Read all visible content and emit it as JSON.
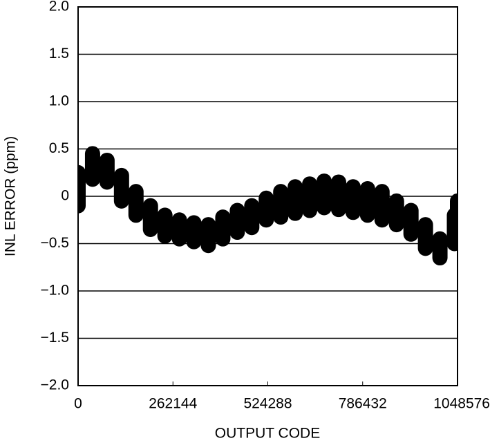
{
  "chart_data": {
    "type": "band",
    "xlabel": "OUTPUT CODE",
    "ylabel": "INL ERROR (ppm)",
    "x": [
      0,
      40000,
      80000,
      120000,
      160000,
      200000,
      240000,
      280000,
      320000,
      360000,
      400000,
      440000,
      480000,
      520000,
      560000,
      600000,
      640000,
      680000,
      720000,
      760000,
      800000,
      840000,
      880000,
      920000,
      960000,
      1000000,
      1040000,
      1048576
    ],
    "series": [
      {
        "color": "#000000",
        "values": [
          0.25,
          0.45,
          0.38,
          0.22,
          0.05,
          -0.1,
          -0.2,
          -0.25,
          -0.28,
          -0.3,
          -0.22,
          -0.15,
          -0.1,
          -0.02,
          0.05,
          0.1,
          0.13,
          0.16,
          0.15,
          0.1,
          0.08,
          0.05,
          -0.05,
          -0.15,
          -0.3,
          -0.45,
          -0.2,
          -0.05
        ]
      },
      {
        "color": "#000000",
        "values": [
          -0.1,
          0.18,
          0.15,
          -0.05,
          -0.2,
          -0.35,
          -0.42,
          -0.45,
          -0.48,
          -0.52,
          -0.45,
          -0.38,
          -0.33,
          -0.25,
          -0.22,
          -0.18,
          -0.15,
          -0.12,
          -0.14,
          -0.17,
          -0.2,
          -0.25,
          -0.3,
          -0.4,
          -0.55,
          -0.65,
          -0.5,
          -0.45
        ]
      }
    ],
    "xlim": [
      0,
      1048576
    ],
    "xticks": [
      0,
      262144,
      524288,
      786432,
      1048576
    ],
    "ylim": [
      -2,
      2
    ],
    "yticks": [
      {
        "value": -2,
        "label": "−2.0"
      },
      {
        "value": -1.5,
        "label": "−1.5"
      },
      {
        "value": -1,
        "label": "−1.0"
      },
      {
        "value": -0.5,
        "label": "−0.5"
      },
      0,
      {
        "value": 0.5,
        "label": "0.5"
      },
      {
        "value": 1,
        "label": "1.0"
      },
      {
        "value": 1.5,
        "label": "1.5"
      },
      {
        "value": 2,
        "label": "2.0"
      }
    ],
    "grid": true
  }
}
